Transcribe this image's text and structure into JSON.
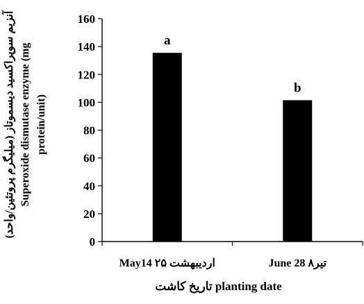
{
  "chart_data": {
    "type": "bar",
    "categories": [
      "May14  ۲۵ اردیبهشت",
      "June 28  ۸تیر"
    ],
    "values": [
      135.5,
      101.5
    ],
    "significance_letters": [
      "a",
      "b"
    ],
    "ylim": [
      0,
      160
    ],
    "yticks": [
      0,
      20,
      40,
      60,
      80,
      100,
      120,
      140,
      160
    ],
    "xlabel": "تاریخ کاشت  planting date",
    "ylabel_lines": [
      "آنزیم سوپراکسید دیسموتاز (میلیگرم پروتئین/واحد)",
      "Superoxide dismutase enzyme (mg",
      "protein/unit)"
    ],
    "bar_color": "#000000",
    "grid": false,
    "legend": "none"
  }
}
